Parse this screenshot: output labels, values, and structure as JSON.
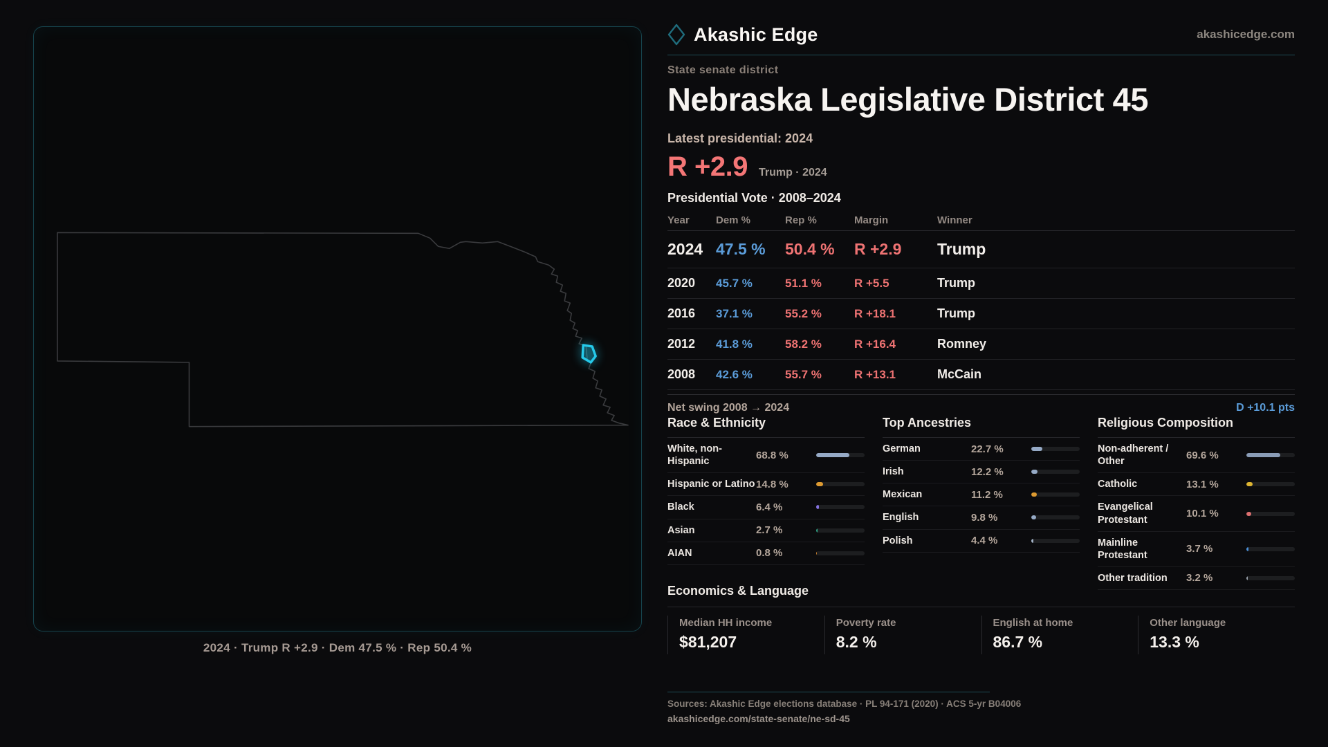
{
  "brand": {
    "name": "Akashic Edge",
    "site": "akashicedge.com"
  },
  "map": {
    "caption": "2024 · Trump R +2.9 · Dem 47.5 % · Rep 50.4 %"
  },
  "profile": {
    "kicker": "State senate district",
    "title": "Nebraska Legislative District 45",
    "latest_label": "Latest presidential: 2024",
    "headline_margin": "R +2.9",
    "headline_note": "Trump · 2024"
  },
  "vote_table": {
    "title": "Presidential Vote · 2008–2024",
    "columns": [
      "Year",
      "Dem %",
      "Rep %",
      "Margin",
      "Winner"
    ],
    "rows": [
      {
        "year": "2024",
        "dem": "47.5 %",
        "rep": "50.4 %",
        "margin": "R +2.9",
        "winner": "Trump",
        "emphasis": true
      },
      {
        "year": "2020",
        "dem": "45.7 %",
        "rep": "51.1 %",
        "margin": "R +5.5",
        "winner": "Trump",
        "emphasis": false
      },
      {
        "year": "2016",
        "dem": "37.1 %",
        "rep": "55.2 %",
        "margin": "R +18.1",
        "winner": "Trump",
        "emphasis": false
      },
      {
        "year": "2012",
        "dem": "41.8 %",
        "rep": "58.2 %",
        "margin": "R +16.4",
        "winner": "Romney",
        "emphasis": false
      },
      {
        "year": "2008",
        "dem": "42.6 %",
        "rep": "55.7 %",
        "margin": "R +13.1",
        "winner": "McCain",
        "emphasis": false
      }
    ],
    "swing_label": "Net swing 2008 → 2024",
    "swing_value": "D +10.1 pts"
  },
  "chart_data": {
    "type": "bar",
    "title": "Demographic composition bars",
    "groups": [
      {
        "title": "Race & Ethnicity",
        "rows": [
          {
            "label": "White, non-Hispanic",
            "value": "68.8 %",
            "pct": 68.8,
            "color": "#96aac6"
          },
          {
            "label": "Hispanic or Latino",
            "value": "14.8 %",
            "pct": 14.8,
            "color": "#dd9a31"
          },
          {
            "label": "Black",
            "value": "6.4 %",
            "pct": 6.4,
            "color": "#8673e2"
          },
          {
            "label": "Asian",
            "value": "2.7 %",
            "pct": 2.7,
            "color": "#2fa184"
          },
          {
            "label": "AIAN",
            "value": "0.8 %",
            "pct": 0.8,
            "color": "#c8802e"
          }
        ]
      },
      {
        "title": "Top Ancestries",
        "rows": [
          {
            "label": "German",
            "value": "22.7 %",
            "pct": 22.7,
            "color": "#96aac6"
          },
          {
            "label": "Irish",
            "value": "12.2 %",
            "pct": 12.2,
            "color": "#96aac6"
          },
          {
            "label": "Mexican",
            "value": "11.2 %",
            "pct": 11.2,
            "color": "#dd9a31"
          },
          {
            "label": "English",
            "value": "9.8 %",
            "pct": 9.8,
            "color": "#96aac6"
          },
          {
            "label": "Polish",
            "value": "4.4 %",
            "pct": 4.4,
            "color": "#a3b2c6"
          }
        ]
      },
      {
        "title": "Religious Composition",
        "rows": [
          {
            "label": "Non-adherent / Other",
            "value": "69.6 %",
            "pct": 69.6,
            "color": "#8a9cb6"
          },
          {
            "label": "Catholic",
            "value": "13.1 %",
            "pct": 13.1,
            "color": "#ddb431"
          },
          {
            "label": "Evangelical Protestant",
            "value": "10.1 %",
            "pct": 10.1,
            "color": "#dd6f6f"
          },
          {
            "label": "Mainline Protestant",
            "value": "3.7 %",
            "pct": 3.7,
            "color": "#4a90d9"
          },
          {
            "label": "Other tradition",
            "value": "3.2 %",
            "pct": 3.2,
            "color": "#9aa2ac"
          }
        ]
      }
    ]
  },
  "economics": {
    "title": "Economics & Language",
    "stats": [
      {
        "label": "Median HH income",
        "value": "$81,207"
      },
      {
        "label": "Poverty rate",
        "value": "8.2 %"
      },
      {
        "label": "English at home",
        "value": "86.7 %"
      },
      {
        "label": "Other language",
        "value": "13.3 %"
      }
    ]
  },
  "footer": {
    "sources": "Sources: Akashic Edge elections database · PL 94-171 (2020) · ACS 5-yr B04006",
    "url": "akashicedge.com/state-senate/ne-sd-45"
  },
  "colors": {
    "accent_teal": "#1d4b55",
    "highlight_cyan": "#25c9ea",
    "dem_blue": "#5b9cd9",
    "rep_red": "#ef7373"
  }
}
